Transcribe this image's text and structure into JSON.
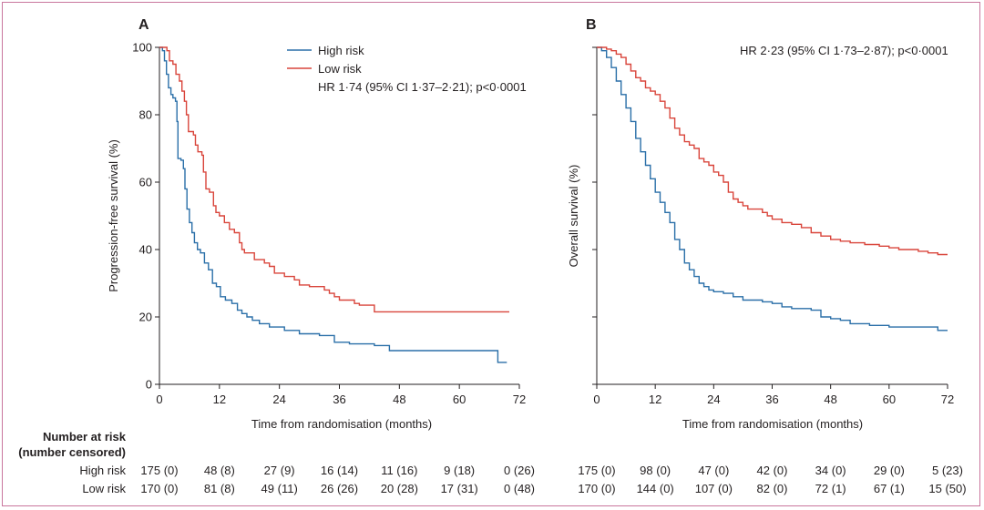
{
  "colors": {
    "high_risk": "#2a6fa8",
    "low_risk": "#d9453b",
    "frame": "#c9769d",
    "axis": "#231f20"
  },
  "number_at_risk": {
    "header_line1": "Number at risk",
    "header_line2": "(number censored)",
    "row_labels": [
      "High risk",
      "Low risk"
    ]
  },
  "chart_data": [
    {
      "type": "line",
      "panel": "A",
      "title": "",
      "xlabel": "Time from randomisation (months)",
      "ylabel": "Progression-free survival (%)",
      "xlim": [
        0,
        72
      ],
      "ylim": [
        0,
        100
      ],
      "x_ticks": [
        0,
        12,
        24,
        36,
        48,
        60,
        72
      ],
      "y_ticks": [
        0,
        20,
        40,
        60,
        80,
        100
      ],
      "y_tick_labels": [
        "0",
        "20",
        "40",
        "60",
        "80",
        "100"
      ],
      "grid": false,
      "legend": [
        "High risk",
        "Low risk"
      ],
      "legend_position": "top-center",
      "annotation": "HR 1·74 (95% CI 1·37–2·21); p<0·0001",
      "series": [
        {
          "name": "High risk",
          "color": "#2a6fa8",
          "points": [
            [
              0,
              100
            ],
            [
              0.6,
              99
            ],
            [
              1,
              96
            ],
            [
              1.4,
              92
            ],
            [
              1.8,
              88
            ],
            [
              2.3,
              86
            ],
            [
              2.7,
              85
            ],
            [
              3.2,
              84
            ],
            [
              3.5,
              78
            ],
            [
              3.7,
              67
            ],
            [
              4.3,
              66.5
            ],
            [
              4.8,
              64
            ],
            [
              5.1,
              58
            ],
            [
              5.5,
              52
            ],
            [
              6,
              48
            ],
            [
              6.5,
              45
            ],
            [
              7,
              42
            ],
            [
              7.6,
              40
            ],
            [
              8.2,
              39
            ],
            [
              9,
              36
            ],
            [
              9.8,
              34
            ],
            [
              10.6,
              30
            ],
            [
              11.4,
              29
            ],
            [
              12.2,
              26
            ],
            [
              13.2,
              25
            ],
            [
              14.5,
              24
            ],
            [
              15.6,
              22
            ],
            [
              16.5,
              21
            ],
            [
              17.5,
              20
            ],
            [
              18.6,
              19
            ],
            [
              20,
              18
            ],
            [
              22,
              17
            ],
            [
              25,
              16
            ],
            [
              28,
              15
            ],
            [
              32,
              14.5
            ],
            [
              35,
              12.5
            ],
            [
              38,
              12
            ],
            [
              43,
              11.5
            ],
            [
              46,
              10
            ],
            [
              50,
              10
            ],
            [
              60,
              10
            ],
            [
              63,
              10
            ],
            [
              67.5,
              10
            ],
            [
              67.7,
              6.5
            ],
            [
              69.5,
              6.5
            ]
          ]
        },
        {
          "name": "Low risk",
          "color": "#d9453b",
          "points": [
            [
              0,
              100
            ],
            [
              1.5,
              99
            ],
            [
              2,
              96
            ],
            [
              2.7,
              95
            ],
            [
              3.3,
              92
            ],
            [
              4,
              90
            ],
            [
              4.5,
              87
            ],
            [
              5,
              84
            ],
            [
              5.4,
              80
            ],
            [
              5.8,
              75
            ],
            [
              6.8,
              74
            ],
            [
              7.2,
              71
            ],
            [
              7.7,
              69
            ],
            [
              8.5,
              68
            ],
            [
              8.8,
              63
            ],
            [
              9.3,
              58
            ],
            [
              10,
              57
            ],
            [
              10.8,
              53
            ],
            [
              11.3,
              51
            ],
            [
              12,
              50
            ],
            [
              13,
              48
            ],
            [
              14,
              46
            ],
            [
              15,
              45
            ],
            [
              16,
              42
            ],
            [
              16.5,
              40
            ],
            [
              17,
              39
            ],
            [
              19,
              37
            ],
            [
              21,
              36
            ],
            [
              22,
              35
            ],
            [
              23,
              33
            ],
            [
              25,
              32
            ],
            [
              27,
              31
            ],
            [
              28,
              29.5
            ],
            [
              30,
              29
            ],
            [
              32,
              29
            ],
            [
              33,
              28
            ],
            [
              34,
              27
            ],
            [
              35,
              26
            ],
            [
              36,
              25
            ],
            [
              38,
              25
            ],
            [
              39,
              24
            ],
            [
              40,
              23.5
            ],
            [
              43,
              21.5
            ],
            [
              50,
              21.5
            ],
            [
              60,
              21.5
            ],
            [
              70,
              21.5
            ]
          ]
        }
      ],
      "risk_table": {
        "high_risk": [
          "175 (0)",
          "48 (8)",
          "27 (9)",
          "16 (14)",
          "11 (16)",
          "9 (18)",
          "0 (26)"
        ],
        "low_risk": [
          "170 (0)",
          "81 (8)",
          "49 (11)",
          "26 (26)",
          "20 (28)",
          "17 (31)",
          "0 (48)"
        ]
      }
    },
    {
      "type": "line",
      "panel": "B",
      "title": "",
      "xlabel": "Time from randomisation (months)",
      "ylabel": "Overall survival (%)",
      "xlim": [
        0,
        72
      ],
      "ylim": [
        0,
        100
      ],
      "x_ticks": [
        0,
        12,
        24,
        36,
        48,
        60,
        72
      ],
      "y_ticks": [
        0,
        20,
        40,
        60,
        80,
        100
      ],
      "y_tick_labels": [
        "",
        "",
        "",
        "",
        "",
        ""
      ],
      "grid": false,
      "legend": [],
      "annotation": "HR 2·23 (95% CI 1·73–2·87); p<0·0001",
      "series": [
        {
          "name": "High risk",
          "color": "#2a6fa8",
          "points": [
            [
              0,
              100
            ],
            [
              1,
              99
            ],
            [
              2,
              97
            ],
            [
              3,
              94
            ],
            [
              4,
              90
            ],
            [
              5,
              86
            ],
            [
              6,
              82
            ],
            [
              7,
              78
            ],
            [
              8,
              73
            ],
            [
              9,
              69
            ],
            [
              10,
              65
            ],
            [
              11,
              61
            ],
            [
              12,
              57
            ],
            [
              13,
              54
            ],
            [
              14,
              51
            ],
            [
              15,
              48
            ],
            [
              16,
              43
            ],
            [
              17,
              40
            ],
            [
              18,
              36
            ],
            [
              19,
              34
            ],
            [
              20,
              32
            ],
            [
              21,
              30
            ],
            [
              22,
              29
            ],
            [
              23,
              28
            ],
            [
              24,
              27.5
            ],
            [
              26,
              27
            ],
            [
              28,
              26
            ],
            [
              30,
              25
            ],
            [
              32,
              25
            ],
            [
              34,
              24.5
            ],
            [
              36,
              24
            ],
            [
              38,
              23
            ],
            [
              40,
              22.5
            ],
            [
              44,
              22
            ],
            [
              46,
              20
            ],
            [
              48,
              19.5
            ],
            [
              50,
              19
            ],
            [
              52,
              18
            ],
            [
              56,
              17.5
            ],
            [
              60,
              17
            ],
            [
              66,
              17
            ],
            [
              70,
              16
            ],
            [
              72,
              16
            ]
          ]
        },
        {
          "name": "Low risk",
          "color": "#d9453b",
          "points": [
            [
              0,
              100
            ],
            [
              2,
              99.5
            ],
            [
              3,
              99
            ],
            [
              4,
              98
            ],
            [
              5,
              97
            ],
            [
              6,
              95
            ],
            [
              7,
              93
            ],
            [
              8,
              91
            ],
            [
              9,
              90
            ],
            [
              10,
              88
            ],
            [
              11,
              87
            ],
            [
              12,
              86
            ],
            [
              13,
              84
            ],
            [
              14,
              82
            ],
            [
              15,
              79
            ],
            [
              16,
              76
            ],
            [
              17,
              74
            ],
            [
              18,
              72
            ],
            [
              19,
              71
            ],
            [
              20,
              70
            ],
            [
              21,
              67
            ],
            [
              22,
              66
            ],
            [
              23,
              65
            ],
            [
              24,
              63
            ],
            [
              25,
              62
            ],
            [
              26,
              60
            ],
            [
              27,
              57
            ],
            [
              28,
              55
            ],
            [
              29,
              54
            ],
            [
              30,
              53
            ],
            [
              31,
              52
            ],
            [
              32,
              52
            ],
            [
              34,
              51
            ],
            [
              35,
              50
            ],
            [
              36,
              49
            ],
            [
              38,
              48
            ],
            [
              40,
              47.5
            ],
            [
              42,
              46.5
            ],
            [
              44,
              45
            ],
            [
              46,
              44
            ],
            [
              48,
              43
            ],
            [
              50,
              42.5
            ],
            [
              52,
              42
            ],
            [
              55,
              41.5
            ],
            [
              58,
              41
            ],
            [
              60,
              40.5
            ],
            [
              62,
              40
            ],
            [
              66,
              39.5
            ],
            [
              68,
              39
            ],
            [
              70,
              38.5
            ],
            [
              72,
              38.5
            ]
          ]
        }
      ],
      "risk_table": {
        "high_risk": [
          "175 (0)",
          "98 (0)",
          "47 (0)",
          "42 (0)",
          "34 (0)",
          "29 (0)",
          "5 (23)"
        ],
        "low_risk": [
          "170 (0)",
          "144 (0)",
          "107 (0)",
          "82 (0)",
          "72 (1)",
          "67 (1)",
          "15 (50)"
        ]
      }
    }
  ]
}
